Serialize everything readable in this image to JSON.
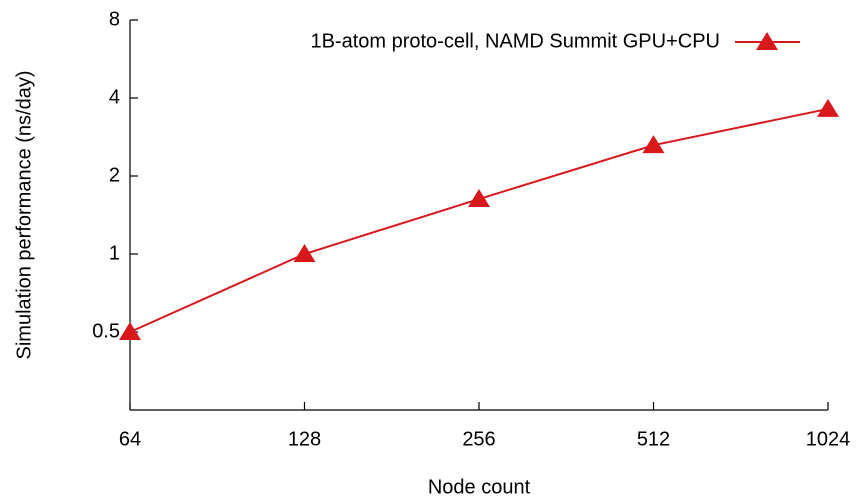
{
  "chart_data": {
    "type": "line",
    "xlabel": "Node count",
    "ylabel": "Simulation performance (ns/day)",
    "x": [
      64,
      128,
      256,
      512,
      1024
    ],
    "series": [
      {
        "name": "1B-atom proto-cell, NAMD Summit GPU+CPU",
        "color": "#d7191c",
        "values": [
          0.5,
          1.0,
          1.63,
          2.63,
          3.63
        ]
      }
    ],
    "xlim": [
      64,
      1024
    ],
    "xticks": [
      64,
      128,
      256,
      512,
      1024
    ],
    "ylim": [
      0.25,
      8
    ],
    "yticks": [
      0.5,
      1,
      2,
      4,
      8
    ],
    "xscale": "log",
    "yscale": "log",
    "legend": "upper right"
  }
}
